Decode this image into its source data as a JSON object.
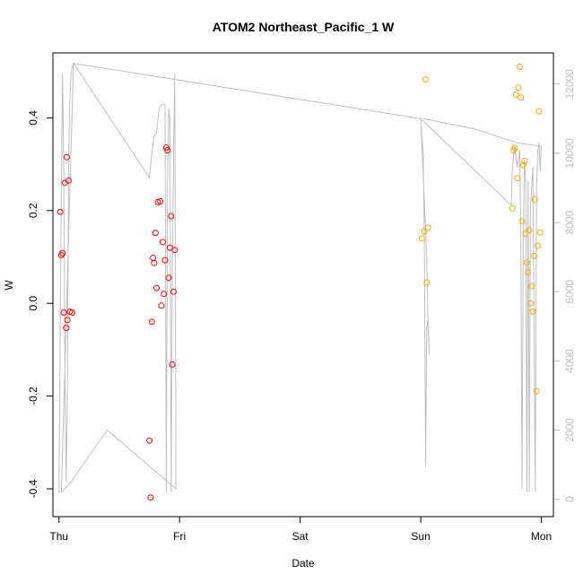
{
  "chart_data": {
    "type": "scatter",
    "title": "ATOM2 Northeast_Pacific_1 W",
    "xlabel": "Date",
    "ylabel": "W",
    "x_ticks": [
      "Thu",
      "Fri",
      "Sat",
      "Sun",
      "Mon"
    ],
    "x_range_days": [
      -0.05,
      4.1
    ],
    "ylim": [
      -0.46,
      0.54
    ],
    "y_ticks": [
      -0.4,
      -0.2,
      0.0,
      0.2,
      0.4
    ],
    "y2_ticks": [
      0,
      2000,
      4000,
      6000,
      8000,
      10000,
      12000
    ],
    "y2lim": [
      -500,
      12900
    ],
    "grid": false,
    "colors": {
      "red": "#ff0000",
      "orange": "#ffa500",
      "gray": "#bebebe",
      "axis": "#000000"
    },
    "series": [
      {
        "color": "red",
        "points": [
          [
            0.01,
            0.197
          ],
          [
            0.02,
            0.104
          ],
          [
            0.03,
            0.108
          ],
          [
            0.04,
            -0.02
          ],
          [
            0.05,
            0.26
          ],
          [
            0.06,
            -0.053
          ],
          [
            0.065,
            0.315
          ],
          [
            0.07,
            -0.036
          ],
          [
            0.08,
            0.265
          ],
          [
            0.09,
            -0.018
          ],
          [
            0.11,
            -0.02
          ],
          [
            0.75,
            -0.296
          ],
          [
            0.76,
            -0.419
          ],
          [
            0.77,
            -0.04
          ],
          [
            0.78,
            0.098
          ],
          [
            0.79,
            0.087
          ],
          [
            0.8,
            0.152
          ],
          [
            0.81,
            0.033
          ],
          [
            0.82,
            0.218
          ],
          [
            0.84,
            0.22
          ],
          [
            0.85,
            -0.005
          ],
          [
            0.86,
            0.132
          ],
          [
            0.87,
            0.02
          ],
          [
            0.88,
            0.093
          ],
          [
            0.89,
            0.336
          ],
          [
            0.9,
            0.33
          ],
          [
            0.91,
            0.055
          ],
          [
            0.92,
            0.12
          ],
          [
            0.93,
            0.188
          ],
          [
            0.94,
            -0.132
          ],
          [
            0.95,
            0.025
          ],
          [
            0.96,
            0.115
          ]
        ]
      },
      {
        "color": "orange",
        "points": [
          [
            3.01,
            0.14
          ],
          [
            3.03,
            0.155
          ],
          [
            3.04,
            0.483
          ],
          [
            3.05,
            0.045
          ],
          [
            3.06,
            0.163
          ],
          [
            3.76,
            0.205
          ],
          [
            3.77,
            0.33
          ],
          [
            3.78,
            0.335
          ],
          [
            3.79,
            0.45
          ],
          [
            3.8,
            0.27
          ],
          [
            3.81,
            0.465
          ],
          [
            3.82,
            0.51
          ],
          [
            3.83,
            0.444
          ],
          [
            3.84,
            0.177
          ],
          [
            3.85,
            0.298
          ],
          [
            3.86,
            0.307
          ],
          [
            3.87,
            0.15
          ],
          [
            3.88,
            0.088
          ],
          [
            3.89,
            0.067
          ],
          [
            3.9,
            0.158
          ],
          [
            3.91,
            0.0
          ],
          [
            3.92,
            0.037
          ],
          [
            3.93,
            -0.018
          ],
          [
            3.94,
            0.102
          ],
          [
            3.945,
            0.224
          ],
          [
            3.96,
            -0.19
          ],
          [
            3.97,
            0.124
          ],
          [
            3.98,
            0.414
          ],
          [
            3.99,
            0.153
          ]
        ]
      }
    ],
    "depth_line": [
      [
        0.0,
        200
      ],
      [
        0.02,
        9000
      ],
      [
        0.03,
        12300
      ],
      [
        0.04,
        9500
      ],
      [
        0.05,
        3500
      ],
      [
        0.06,
        500
      ],
      [
        0.07,
        3000
      ],
      [
        0.08,
        9800
      ],
      [
        0.09,
        11500
      ],
      [
        0.1,
        12300
      ],
      [
        0.11,
        12500
      ],
      [
        0.12,
        12600
      ],
      [
        0.75,
        9300
      ],
      [
        0.77,
        10000
      ],
      [
        0.79,
        10500
      ],
      [
        0.81,
        10600
      ],
      [
        0.83,
        11300
      ],
      [
        0.85,
        11400
      ],
      [
        0.88,
        11400
      ],
      [
        0.89,
        200
      ],
      [
        0.9,
        9000
      ],
      [
        0.91,
        11300
      ],
      [
        0.92,
        11000
      ],
      [
        0.93,
        200
      ],
      [
        0.94,
        6500
      ],
      [
        0.95,
        10000
      ],
      [
        0.96,
        12300
      ],
      [
        0.97,
        1500
      ],
      [
        0.97,
        300
      ],
      [
        0.4,
        2000
      ],
      [
        0.2,
        1000
      ],
      [
        0.1,
        500
      ],
      [
        0.02,
        200
      ],
      [
        0.12,
        12600
      ],
      [
        3.0,
        11000
      ],
      [
        3.02,
        10000
      ],
      [
        3.03,
        7500
      ],
      [
        3.04,
        1000
      ],
      [
        3.05,
        5000
      ],
      [
        3.06,
        5200
      ],
      [
        3.07,
        4200
      ],
      [
        3.06,
        5000
      ],
      [
        3.05,
        7000
      ],
      [
        3.0,
        11000
      ],
      [
        3.75,
        8500
      ],
      [
        3.76,
        9600
      ],
      [
        3.78,
        10200
      ],
      [
        3.8,
        9600
      ],
      [
        3.82,
        10100
      ],
      [
        3.83,
        7500
      ],
      [
        3.84,
        300
      ],
      [
        3.85,
        7500
      ],
      [
        3.86,
        9800
      ],
      [
        3.87,
        9200
      ],
      [
        3.88,
        200
      ],
      [
        3.89,
        9200
      ],
      [
        3.9,
        200
      ],
      [
        3.91,
        8500
      ],
      [
        3.93,
        9600
      ],
      [
        3.95,
        200
      ],
      [
        3.96,
        9000
      ],
      [
        3.97,
        10000
      ],
      [
        3.98,
        10300
      ],
      [
        3.99,
        9500
      ],
      [
        4.0,
        10200
      ],
      [
        3.8,
        10300
      ],
      [
        3.45,
        10700
      ],
      [
        3.02,
        11000
      ]
    ]
  }
}
